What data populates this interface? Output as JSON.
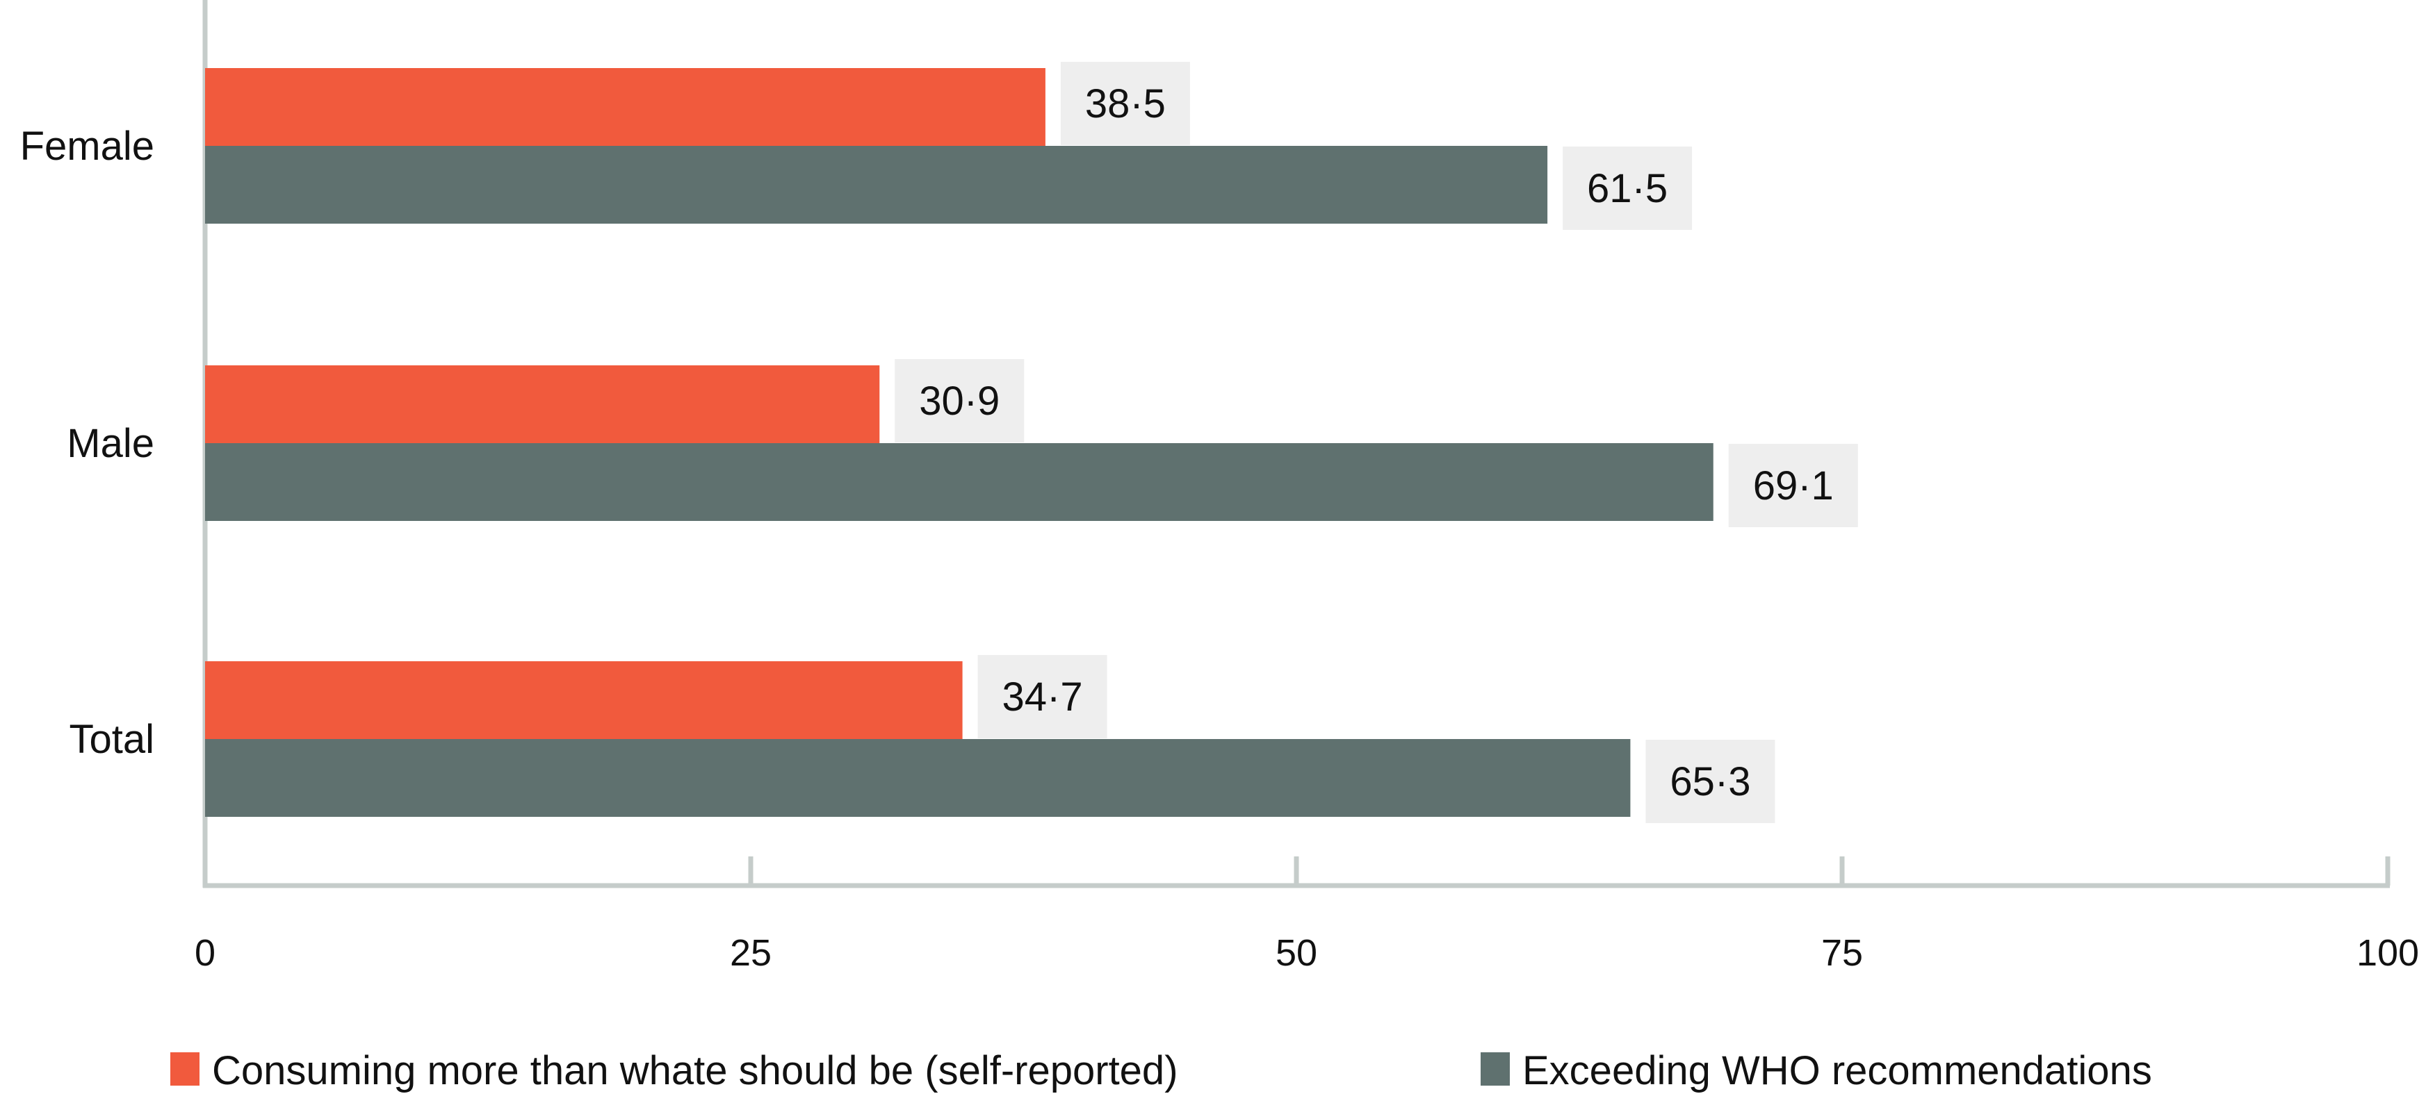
{
  "chart_data": {
    "type": "bar",
    "orientation": "horizontal",
    "categories": [
      "Female",
      "Male",
      "Total"
    ],
    "series": [
      {
        "name": "Consuming more than whate should be (self-reported)",
        "values": [
          38.5,
          30.9,
          34.7
        ],
        "labels": [
          "38·5",
          "30·9",
          "34·7"
        ],
        "color": "#f15a3d"
      },
      {
        "name": "Exceeding WHO recommendations",
        "values": [
          61.5,
          69.1,
          65.3
        ],
        "labels": [
          "61·5",
          "69·1",
          "65·3"
        ],
        "color": "#5f716f"
      }
    ],
    "xlim": [
      0,
      100
    ],
    "xticks": [
      0,
      25,
      50,
      75,
      100
    ],
    "xtick_labels": [
      "0",
      "25",
      "50",
      "75",
      "100"
    ],
    "grid": false,
    "legend_position": "bottom",
    "colors": {
      "axis": "#c5ccca",
      "label_box": "#eeeeee"
    }
  }
}
